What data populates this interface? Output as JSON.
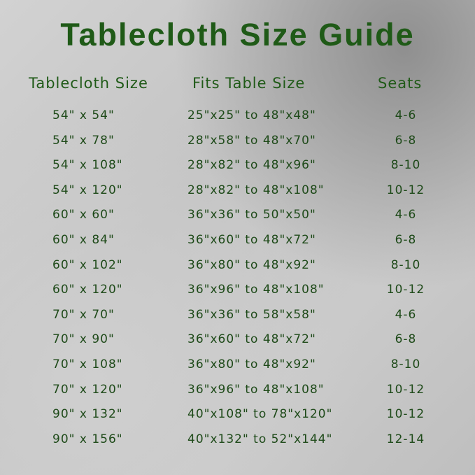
{
  "title": "Tablecloth Size Guide",
  "headers": [
    "Tablecloth Size",
    "Fits Table Size",
    "Seats"
  ],
  "colors": {
    "text": "#1f5a17",
    "background": "#c8c8c8"
  },
  "rows": [
    {
      "size": "54\" x 54\"",
      "fits": "25\"x25\" to 48\"x48\"",
      "seats": "4-6"
    },
    {
      "size": "54\" x 78\"",
      "fits": "28\"x58\" to 48\"x70\"",
      "seats": "6-8"
    },
    {
      "size": "54\" x 108\"",
      "fits": "28\"x82\" to 48\"x96\"",
      "seats": "8-10"
    },
    {
      "size": "54\" x 120\"",
      "fits": "28\"x82\" to 48\"x108\"",
      "seats": "10-12"
    },
    {
      "size": "60\" x 60\"",
      "fits": "36\"x36\" to 50\"x50\"",
      "seats": "4-6"
    },
    {
      "size": "60\" x 84\"",
      "fits": "36\"x60\" to 48\"x72\"",
      "seats": "6-8"
    },
    {
      "size": "60\" x 102\"",
      "fits": "36\"x80\" to 48\"x92\"",
      "seats": "8-10"
    },
    {
      "size": "60\" x 120\"",
      "fits": "36\"x96\" to 48\"x108\"",
      "seats": "10-12"
    },
    {
      "size": "70\" x 70\"",
      "fits": "36\"x36\" to 58\"x58\"",
      "seats": "4-6"
    },
    {
      "size": "70\" x 90\"",
      "fits": "36\"x60\" to 48\"x72\"",
      "seats": "6-8"
    },
    {
      "size": "70\" x 108\"",
      "fits": "36\"x80\" to 48\"x92\"",
      "seats": "8-10"
    },
    {
      "size": "70\" x 120\"",
      "fits": "36\"x96\" to 48\"x108\"",
      "seats": "10-12"
    },
    {
      "size": "90\" x 132\"",
      "fits": "40\"x108\" to 78\"x120\"",
      "seats": "10-12"
    },
    {
      "size": "90\" x 156\"",
      "fits": "40\"x132\" to 52\"x144\"",
      "seats": "12-14"
    }
  ]
}
